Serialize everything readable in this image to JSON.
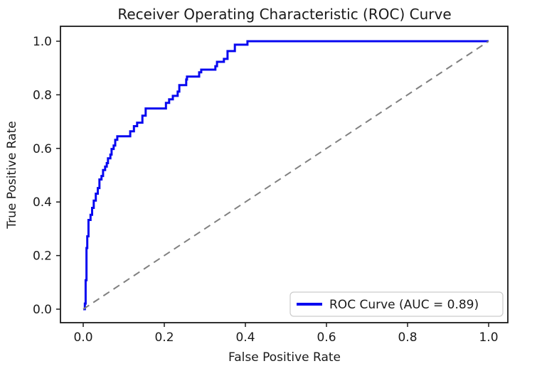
{
  "figure": {
    "title": "Receiver Operating Characteristic (ROC) Curve",
    "xlabel": "False Positive Rate",
    "ylabel": "True Positive Rate",
    "legend_label": "ROC Curve (AUC = 0.89)"
  },
  "colors": {
    "roc_line": "#0808F0",
    "chance_line": "#808080",
    "spine": "#1a1a1a",
    "legend_border": "#cccccc",
    "legend_background": "#ffffff",
    "text": "#1a1a1a"
  },
  "chart_data": {
    "type": "line",
    "title": "Receiver Operating Characteristic (ROC) Curve",
    "xlabel": "False Positive Rate",
    "ylabel": "True Positive Rate",
    "xlim": [
      -0.05,
      1.05
    ],
    "ylim": [
      -0.05,
      1.05
    ],
    "x_tick_values": [
      0.0,
      0.2,
      0.4,
      0.6,
      0.8,
      1.0
    ],
    "y_tick_values": [
      0.0,
      0.2,
      0.4,
      0.6,
      0.8,
      1.0
    ],
    "x_tick_labels": [
      "0.0",
      "0.2",
      "0.4",
      "0.6",
      "0.8",
      "1.0"
    ],
    "y_tick_labels": [
      "0.0",
      "0.2",
      "0.4",
      "0.6",
      "0.8",
      "1.0"
    ],
    "grid": false,
    "legend_position": "lower right",
    "auc": 0.89,
    "series": [
      {
        "name": "ROC Curve (AUC = 0.89)",
        "color": "#0808F0",
        "style": "solid",
        "line_width": 3,
        "step": true,
        "points": [
          [
            0.0,
            0.0
          ],
          [
            0.004,
            0.0
          ],
          [
            0.004,
            0.021
          ],
          [
            0.006,
            0.021
          ],
          [
            0.006,
            0.108
          ],
          [
            0.008,
            0.108
          ],
          [
            0.008,
            0.228
          ],
          [
            0.01,
            0.228
          ],
          [
            0.01,
            0.272
          ],
          [
            0.013,
            0.272
          ],
          [
            0.013,
            0.333
          ],
          [
            0.018,
            0.333
          ],
          [
            0.018,
            0.352
          ],
          [
            0.022,
            0.352
          ],
          [
            0.022,
            0.378
          ],
          [
            0.026,
            0.378
          ],
          [
            0.026,
            0.405
          ],
          [
            0.031,
            0.405
          ],
          [
            0.031,
            0.431
          ],
          [
            0.036,
            0.431
          ],
          [
            0.036,
            0.452
          ],
          [
            0.04,
            0.452
          ],
          [
            0.04,
            0.484
          ],
          [
            0.045,
            0.484
          ],
          [
            0.045,
            0.497
          ],
          [
            0.049,
            0.497
          ],
          [
            0.049,
            0.519
          ],
          [
            0.054,
            0.519
          ],
          [
            0.054,
            0.532
          ],
          [
            0.058,
            0.532
          ],
          [
            0.058,
            0.545
          ],
          [
            0.061,
            0.545
          ],
          [
            0.061,
            0.563
          ],
          [
            0.067,
            0.563
          ],
          [
            0.067,
            0.577
          ],
          [
            0.07,
            0.577
          ],
          [
            0.07,
            0.598
          ],
          [
            0.075,
            0.598
          ],
          [
            0.075,
            0.611
          ],
          [
            0.079,
            0.611
          ],
          [
            0.079,
            0.632
          ],
          [
            0.084,
            0.632
          ],
          [
            0.084,
            0.645
          ],
          [
            0.116,
            0.645
          ],
          [
            0.116,
            0.664
          ],
          [
            0.125,
            0.664
          ],
          [
            0.125,
            0.683
          ],
          [
            0.133,
            0.683
          ],
          [
            0.133,
            0.696
          ],
          [
            0.146,
            0.696
          ],
          [
            0.146,
            0.722
          ],
          [
            0.154,
            0.722
          ],
          [
            0.154,
            0.749
          ],
          [
            0.204,
            0.749
          ],
          [
            0.204,
            0.77
          ],
          [
            0.212,
            0.77
          ],
          [
            0.212,
            0.783
          ],
          [
            0.221,
            0.783
          ],
          [
            0.221,
            0.796
          ],
          [
            0.233,
            0.796
          ],
          [
            0.233,
            0.812
          ],
          [
            0.237,
            0.812
          ],
          [
            0.237,
            0.836
          ],
          [
            0.254,
            0.836
          ],
          [
            0.254,
            0.857
          ],
          [
            0.256,
            0.857
          ],
          [
            0.256,
            0.868
          ],
          [
            0.286,
            0.868
          ],
          [
            0.286,
            0.884
          ],
          [
            0.291,
            0.884
          ],
          [
            0.291,
            0.894
          ],
          [
            0.326,
            0.894
          ],
          [
            0.326,
            0.907
          ],
          [
            0.33,
            0.907
          ],
          [
            0.33,
            0.923
          ],
          [
            0.347,
            0.923
          ],
          [
            0.347,
            0.934
          ],
          [
            0.356,
            0.934
          ],
          [
            0.356,
            0.963
          ],
          [
            0.374,
            0.963
          ],
          [
            0.374,
            0.987
          ],
          [
            0.405,
            0.987
          ],
          [
            0.405,
            1.0
          ],
          [
            1.0,
            1.0
          ]
        ]
      },
      {
        "name": "chance-diagonal",
        "color": "#808080",
        "style": "dashed",
        "line_width": 2,
        "step": false,
        "points": [
          [
            0.0,
            0.0
          ],
          [
            1.0,
            1.0
          ]
        ]
      }
    ]
  }
}
